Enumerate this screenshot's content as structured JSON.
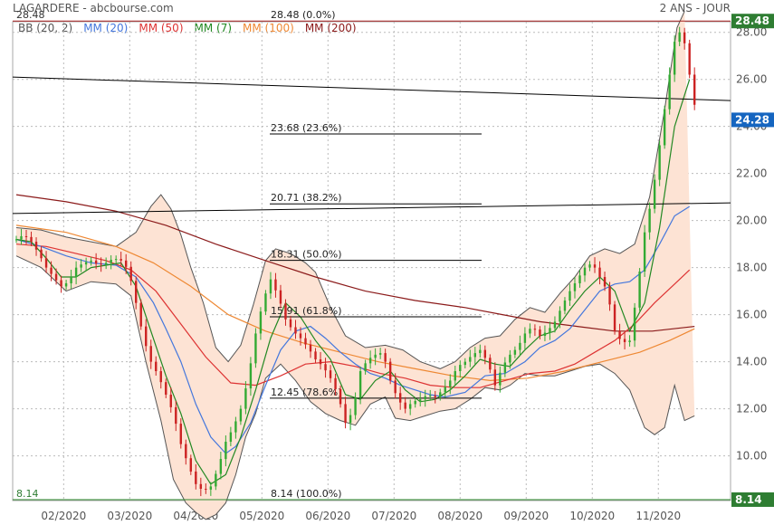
{
  "header": {
    "title": "LAGARDERE - abcbourse.com",
    "period": "2 ANS - JOUR"
  },
  "colors": {
    "bollinger": "#555555",
    "bollinger_fill": "#fde3d4",
    "mm20": "#4477dd",
    "mm50": "#dd3333",
    "mm7": "#228822",
    "mm100": "#ee8833",
    "mm200": "#8b1a1a",
    "up": "#33aa33",
    "down": "#cc2222",
    "fib": "#000000",
    "trend": "#000000",
    "tag_last": "#2e7d32",
    "tag_current": "#1565c0",
    "tag_low": "#2e7d32"
  },
  "chart_data": {
    "type": "candlestick",
    "legend": [
      {
        "label": "BB (20, 2)",
        "key": "bollinger"
      },
      {
        "label": "MM (20)",
        "key": "mm20"
      },
      {
        "label": "MM (50)",
        "key": "mm50"
      },
      {
        "label": "MM (7)",
        "key": "mm7"
      },
      {
        "label": "MM (100)",
        "key": "mm100"
      },
      {
        "label": "MM (200)",
        "key": "mm200"
      }
    ],
    "x_ticks": [
      "02/2020",
      "03/2020",
      "04/2020",
      "05/2020",
      "06/2020",
      "07/2020",
      "08/2020",
      "09/2020",
      "10/2020",
      "11/2020"
    ],
    "y_ticks": [
      "10.00",
      "12.00",
      "14.00",
      "16.00",
      "18.00",
      "20.00",
      "22.00",
      "24.00",
      "26.00",
      "28.00"
    ],
    "ylim": [
      8.1,
      28.45
    ],
    "price_tags": [
      {
        "label": "28.48",
        "value": 28.48,
        "color_key": "tag_last"
      },
      {
        "label": "24.28",
        "value": 24.28,
        "color_key": "tag_current"
      },
      {
        "label": "8.14",
        "value": 8.14,
        "color_key": "tag_low"
      }
    ],
    "left_labels": [
      {
        "label": "28.48",
        "value": 28.48
      },
      {
        "label": "8.14",
        "value": 8.14
      }
    ],
    "fibonacci": [
      {
        "label": "28.48  (0.0%)",
        "value": 28.48
      },
      {
        "label": "23.68  (23.6%)",
        "value": 23.68
      },
      {
        "label": "20.71  (38.2%)",
        "value": 20.71
      },
      {
        "label": "18.31  (50.0%)",
        "value": 18.31
      },
      {
        "label": "15.91  (61.8%)",
        "value": 15.91
      },
      {
        "label": "12.45  (78.6%)",
        "value": 12.45
      },
      {
        "label": "8.14  (100.0%)",
        "value": 8.14
      }
    ],
    "series": {
      "close": [
        [
          0,
          19.2
        ],
        [
          3,
          19.4
        ],
        [
          6,
          19.1
        ],
        [
          9,
          18.6
        ],
        [
          12,
          18.0
        ],
        [
          15,
          17.6
        ],
        [
          18,
          17.2
        ],
        [
          21,
          17.4
        ],
        [
          24,
          18.0
        ],
        [
          27,
          18.2
        ],
        [
          30,
          18.3
        ],
        [
          33,
          18.1
        ],
        [
          36,
          18.2
        ],
        [
          39,
          18.4
        ],
        [
          42,
          18.3
        ],
        [
          45,
          17.9
        ],
        [
          48,
          16.5
        ],
        [
          51,
          15.0
        ],
        [
          54,
          14.0
        ],
        [
          57,
          13.4
        ],
        [
          60,
          12.6
        ],
        [
          63,
          11.8
        ],
        [
          66,
          10.5
        ],
        [
          69,
          9.6
        ],
        [
          72,
          8.8
        ],
        [
          75,
          8.5
        ],
        [
          78,
          8.7
        ],
        [
          81,
          9.5
        ],
        [
          84,
          10.6
        ],
        [
          87,
          11.2
        ],
        [
          90,
          12.0
        ],
        [
          93,
          13.3
        ],
        [
          96,
          15.2
        ],
        [
          99,
          16.6
        ],
        [
          102,
          17.5
        ],
        [
          105,
          16.8
        ],
        [
          108,
          15.8
        ],
        [
          111,
          15.3
        ],
        [
          114,
          15.0
        ],
        [
          117,
          14.6
        ],
        [
          120,
          14.1
        ],
        [
          123,
          13.8
        ],
        [
          126,
          13.3
        ],
        [
          129,
          12.6
        ],
        [
          132,
          11.4
        ],
        [
          135,
          11.9
        ],
        [
          138,
          13.6
        ],
        [
          141,
          14.1
        ],
        [
          144,
          14.3
        ],
        [
          147,
          14.4
        ],
        [
          150,
          13.2
        ],
        [
          153,
          12.4
        ],
        [
          156,
          12.0
        ],
        [
          159,
          12.3
        ],
        [
          162,
          12.4
        ],
        [
          165,
          12.6
        ],
        [
          168,
          12.5
        ],
        [
          171,
          12.8
        ],
        [
          174,
          13.2
        ],
        [
          177,
          13.8
        ],
        [
          180,
          14.0
        ],
        [
          183,
          14.3
        ],
        [
          186,
          14.5
        ],
        [
          189,
          14.0
        ],
        [
          192,
          13.0
        ],
        [
          195,
          13.8
        ],
        [
          198,
          14.3
        ],
        [
          201,
          14.6
        ],
        [
          204,
          15.2
        ],
        [
          207,
          15.5
        ],
        [
          210,
          15.1
        ],
        [
          213,
          15.3
        ],
        [
          216,
          15.7
        ],
        [
          219,
          16.4
        ],
        [
          222,
          17.0
        ],
        [
          225,
          17.5
        ],
        [
          228,
          18.0
        ],
        [
          231,
          18.2
        ],
        [
          234,
          17.6
        ],
        [
          237,
          17.0
        ],
        [
          240,
          15.3
        ],
        [
          243,
          14.8
        ],
        [
          246,
          14.9
        ],
        [
          249,
          17.0
        ],
        [
          252,
          19.5
        ],
        [
          255,
          21.0
        ],
        [
          258,
          23.2
        ],
        [
          261,
          25.5
        ],
        [
          264,
          27.6
        ],
        [
          267,
          28.2
        ],
        [
          270,
          26.2
        ],
        [
          273,
          24.28
        ]
      ],
      "bb_upper": [
        [
          0,
          19.7
        ],
        [
          10,
          19.6
        ],
        [
          20,
          19.3
        ],
        [
          30,
          19.1
        ],
        [
          40,
          18.9
        ],
        [
          48,
          19.5
        ],
        [
          54,
          20.6
        ],
        [
          58,
          21.1
        ],
        [
          62,
          20.5
        ],
        [
          66,
          19.4
        ],
        [
          70,
          18.0
        ],
        [
          75,
          16.5
        ],
        [
          80,
          14.6
        ],
        [
          85,
          14.0
        ],
        [
          90,
          14.7
        ],
        [
          95,
          16.4
        ],
        [
          100,
          18.3
        ],
        [
          104,
          18.8
        ],
        [
          110,
          18.6
        ],
        [
          116,
          18.2
        ],
        [
          120,
          17.8
        ],
        [
          126,
          16.3
        ],
        [
          132,
          15.1
        ],
        [
          140,
          14.6
        ],
        [
          148,
          14.7
        ],
        [
          155,
          14.5
        ],
        [
          162,
          14.0
        ],
        [
          170,
          13.7
        ],
        [
          176,
          14.0
        ],
        [
          182,
          14.6
        ],
        [
          188,
          15.0
        ],
        [
          194,
          15.1
        ],
        [
          200,
          15.8
        ],
        [
          206,
          16.3
        ],
        [
          212,
          16.1
        ],
        [
          218,
          16.9
        ],
        [
          224,
          17.6
        ],
        [
          230,
          18.5
        ],
        [
          236,
          18.8
        ],
        [
          242,
          18.6
        ],
        [
          248,
          19.0
        ],
        [
          254,
          21.0
        ],
        [
          260,
          24.7
        ],
        [
          265,
          28.2
        ],
        [
          268,
          28.9
        ]
      ],
      "bb_lower": [
        [
          0,
          18.5
        ],
        [
          10,
          18.0
        ],
        [
          20,
          17.0
        ],
        [
          30,
          17.4
        ],
        [
          40,
          17.3
        ],
        [
          46,
          16.8
        ],
        [
          52,
          14.0
        ],
        [
          58,
          11.5
        ],
        [
          63,
          9.0
        ],
        [
          68,
          8.0
        ],
        [
          72,
          7.6
        ],
        [
          76,
          7.3
        ],
        [
          80,
          7.5
        ],
        [
          84,
          8.0
        ],
        [
          88,
          9.2
        ],
        [
          92,
          10.8
        ],
        [
          96,
          11.8
        ],
        [
          100,
          13.3
        ],
        [
          106,
          13.9
        ],
        [
          112,
          13.2
        ],
        [
          118,
          12.3
        ],
        [
          124,
          11.8
        ],
        [
          130,
          11.5
        ],
        [
          136,
          11.3
        ],
        [
          142,
          12.2
        ],
        [
          148,
          12.5
        ],
        [
          152,
          11.6
        ],
        [
          158,
          11.5
        ],
        [
          164,
          11.7
        ],
        [
          170,
          11.9
        ],
        [
          176,
          12.0
        ],
        [
          182,
          12.4
        ],
        [
          188,
          12.9
        ],
        [
          194,
          12.8
        ],
        [
          198,
          13.0
        ],
        [
          204,
          13.5
        ],
        [
          210,
          13.4
        ],
        [
          216,
          13.4
        ],
        [
          222,
          13.6
        ],
        [
          228,
          13.8
        ],
        [
          234,
          13.9
        ],
        [
          240,
          13.5
        ],
        [
          246,
          12.8
        ],
        [
          252,
          11.2
        ],
        [
          256,
          10.9
        ],
        [
          260,
          11.2
        ],
        [
          264,
          13.0
        ],
        [
          268,
          11.5
        ],
        [
          272,
          11.7
        ]
      ],
      "mm20": [
        [
          0,
          19.2
        ],
        [
          10,
          18.9
        ],
        [
          20,
          18.5
        ],
        [
          30,
          18.2
        ],
        [
          40,
          18.1
        ],
        [
          48,
          17.6
        ],
        [
          55,
          16.5
        ],
        [
          60,
          15.4
        ],
        [
          66,
          14.0
        ],
        [
          72,
          12.2
        ],
        [
          78,
          10.8
        ],
        [
          84,
          10.1
        ],
        [
          88,
          10.4
        ],
        [
          94,
          11.4
        ],
        [
          100,
          13.0
        ],
        [
          106,
          14.5
        ],
        [
          112,
          15.3
        ],
        [
          118,
          15.5
        ],
        [
          124,
          15.0
        ],
        [
          130,
          14.4
        ],
        [
          136,
          13.9
        ],
        [
          142,
          13.5
        ],
        [
          148,
          13.3
        ],
        [
          154,
          13.0
        ],
        [
          160,
          12.8
        ],
        [
          166,
          12.6
        ],
        [
          172,
          12.5
        ],
        [
          180,
          12.7
        ],
        [
          188,
          13.4
        ],
        [
          196,
          13.5
        ],
        [
          204,
          14.0
        ],
        [
          210,
          14.6
        ],
        [
          216,
          14.9
        ],
        [
          222,
          15.4
        ],
        [
          228,
          16.2
        ],
        [
          234,
          17.0
        ],
        [
          240,
          17.3
        ],
        [
          246,
          17.4
        ],
        [
          252,
          17.9
        ],
        [
          258,
          19.0
        ],
        [
          264,
          20.2
        ],
        [
          270,
          20.6
        ]
      ],
      "mm50": [
        [
          0,
          19.0
        ],
        [
          12,
          18.9
        ],
        [
          24,
          18.6
        ],
        [
          36,
          18.3
        ],
        [
          46,
          17.9
        ],
        [
          56,
          17.0
        ],
        [
          66,
          15.6
        ],
        [
          76,
          14.2
        ],
        [
          86,
          13.1
        ],
        [
          96,
          13.0
        ],
        [
          106,
          13.4
        ],
        [
          116,
          13.9
        ],
        [
          126,
          14.0
        ],
        [
          136,
          13.8
        ],
        [
          146,
          13.5
        ],
        [
          156,
          13.3
        ],
        [
          166,
          13.0
        ],
        [
          176,
          12.9
        ],
        [
          186,
          12.9
        ],
        [
          196,
          13.2
        ],
        [
          206,
          13.5
        ],
        [
          216,
          13.6
        ],
        [
          224,
          13.9
        ],
        [
          232,
          14.4
        ],
        [
          240,
          14.9
        ],
        [
          248,
          15.6
        ],
        [
          256,
          16.5
        ],
        [
          264,
          17.3
        ],
        [
          270,
          17.9
        ]
      ],
      "mm7": [
        [
          0,
          19.2
        ],
        [
          6,
          19.1
        ],
        [
          12,
          18.4
        ],
        [
          18,
          17.6
        ],
        [
          24,
          17.6
        ],
        [
          30,
          18.0
        ],
        [
          36,
          18.1
        ],
        [
          42,
          18.2
        ],
        [
          48,
          17.2
        ],
        [
          54,
          15.3
        ],
        [
          60,
          13.4
        ],
        [
          66,
          11.8
        ],
        [
          72,
          9.8
        ],
        [
          78,
          8.8
        ],
        [
          84,
          9.2
        ],
        [
          90,
          10.8
        ],
        [
          96,
          12.8
        ],
        [
          102,
          15.0
        ],
        [
          108,
          16.5
        ],
        [
          114,
          15.9
        ],
        [
          120,
          14.9
        ],
        [
          126,
          14.1
        ],
        [
          132,
          12.6
        ],
        [
          138,
          12.4
        ],
        [
          144,
          13.2
        ],
        [
          150,
          13.6
        ],
        [
          156,
          12.8
        ],
        [
          162,
          12.3
        ],
        [
          168,
          12.4
        ],
        [
          174,
          12.8
        ],
        [
          180,
          13.4
        ],
        [
          186,
          14.1
        ],
        [
          192,
          13.9
        ],
        [
          198,
          13.8
        ],
        [
          204,
          14.5
        ],
        [
          210,
          15.1
        ],
        [
          216,
          15.3
        ],
        [
          222,
          16.2
        ],
        [
          228,
          17.0
        ],
        [
          234,
          17.6
        ],
        [
          240,
          17.0
        ],
        [
          246,
          15.3
        ],
        [
          252,
          16.5
        ],
        [
          258,
          19.7
        ],
        [
          264,
          24.0
        ],
        [
          270,
          26.0
        ]
      ],
      "mm100": [
        [
          0,
          19.8
        ],
        [
          20,
          19.5
        ],
        [
          40,
          18.9
        ],
        [
          55,
          18.2
        ],
        [
          70,
          17.2
        ],
        [
          85,
          16.0
        ],
        [
          100,
          15.3
        ],
        [
          115,
          14.8
        ],
        [
          130,
          14.4
        ],
        [
          145,
          14.0
        ],
        [
          160,
          13.7
        ],
        [
          175,
          13.4
        ],
        [
          190,
          13.2
        ],
        [
          205,
          13.3
        ],
        [
          220,
          13.6
        ],
        [
          235,
          14.0
        ],
        [
          250,
          14.4
        ],
        [
          262,
          14.9
        ],
        [
          272,
          15.4
        ]
      ],
      "mm200": [
        [
          0,
          21.1
        ],
        [
          20,
          20.8
        ],
        [
          40,
          20.4
        ],
        [
          60,
          19.8
        ],
        [
          80,
          19.0
        ],
        [
          100,
          18.3
        ],
        [
          120,
          17.6
        ],
        [
          140,
          17.0
        ],
        [
          160,
          16.6
        ],
        [
          180,
          16.3
        ],
        [
          195,
          16.0
        ],
        [
          210,
          15.7
        ],
        [
          225,
          15.5
        ],
        [
          240,
          15.3
        ],
        [
          255,
          15.3
        ],
        [
          272,
          15.5
        ]
      ]
    }
  }
}
